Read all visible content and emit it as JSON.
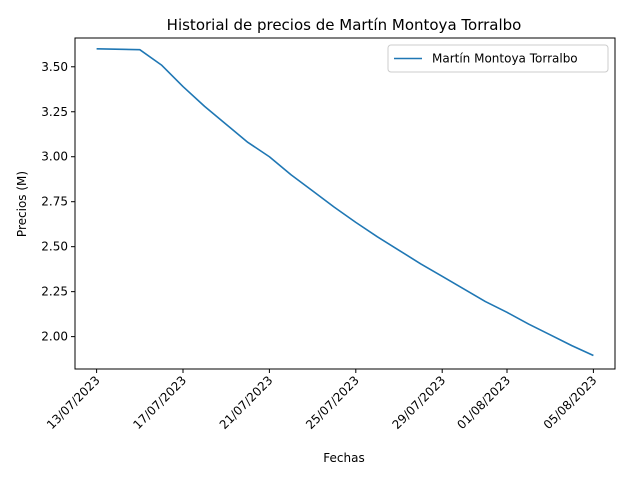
{
  "chart_data": {
    "type": "line",
    "title": "Historial de precios de Martín Montoya Torralbo",
    "xlabel": "Fechas",
    "ylabel": "Precios (M)",
    "legend_position": "top-right",
    "grid": false,
    "x_ticks": [
      "13/07/2023",
      "17/07/2023",
      "21/07/2023",
      "25/07/2023",
      "29/07/2023",
      "01/08/2023",
      "05/08/2023"
    ],
    "y_ticks": [
      "2.00",
      "2.25",
      "2.50",
      "2.75",
      "3.00",
      "3.25",
      "3.50"
    ],
    "ylim": [
      1.82,
      3.66
    ],
    "xlim": [
      "2023-07-12",
      "2023-08-06"
    ],
    "series": [
      {
        "name": "Martín Montoya Torralbo",
        "color": "#1f77b4",
        "points": [
          {
            "x": "2023-07-13",
            "y": 3.6
          },
          {
            "x": "2023-07-15",
            "y": 3.595
          },
          {
            "x": "2023-07-16",
            "y": 3.51
          },
          {
            "x": "2023-07-17",
            "y": 3.39
          },
          {
            "x": "2023-07-18",
            "y": 3.28
          },
          {
            "x": "2023-07-19",
            "y": 3.18
          },
          {
            "x": "2023-07-20",
            "y": 3.08
          },
          {
            "x": "2023-07-21",
            "y": 3.0
          },
          {
            "x": "2023-07-22",
            "y": 2.9
          },
          {
            "x": "2023-07-23",
            "y": 2.81
          },
          {
            "x": "2023-07-24",
            "y": 2.72
          },
          {
            "x": "2023-07-25",
            "y": 2.635
          },
          {
            "x": "2023-07-26",
            "y": 2.555
          },
          {
            "x": "2023-07-27",
            "y": 2.48
          },
          {
            "x": "2023-07-28",
            "y": 2.405
          },
          {
            "x": "2023-07-29",
            "y": 2.335
          },
          {
            "x": "2023-07-30",
            "y": 2.265
          },
          {
            "x": "2023-07-31",
            "y": 2.195
          },
          {
            "x": "2023-08-01",
            "y": 2.135
          },
          {
            "x": "2023-08-02",
            "y": 2.07
          },
          {
            "x": "2023-08-03",
            "y": 2.01
          },
          {
            "x": "2023-08-04",
            "y": 1.95
          },
          {
            "x": "2023-08-05",
            "y": 1.895
          }
        ]
      }
    ]
  }
}
